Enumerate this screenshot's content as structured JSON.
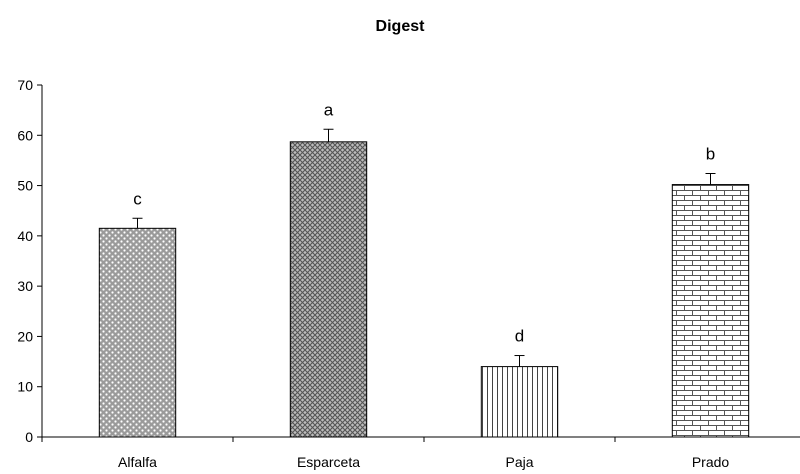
{
  "chart_data": {
    "type": "bar",
    "title": "Digest",
    "xlabel": "",
    "ylabel": "",
    "ylim": [
      0,
      70
    ],
    "yticks": [
      0,
      10,
      20,
      30,
      40,
      50,
      60,
      70
    ],
    "categories": [
      "Alfalfa",
      "Esparceta",
      "Paja",
      "Prado"
    ],
    "values": [
      41.5,
      58.7,
      14.0,
      50.2
    ],
    "errors": [
      2.0,
      2.5,
      2.2,
      2.2
    ],
    "significance_letters": [
      "c",
      "a",
      "d",
      "b"
    ],
    "patterns": [
      "diamond-lattice",
      "crosshatch",
      "vertical-lines",
      "brick"
    ],
    "grid": false,
    "legend": "none"
  }
}
